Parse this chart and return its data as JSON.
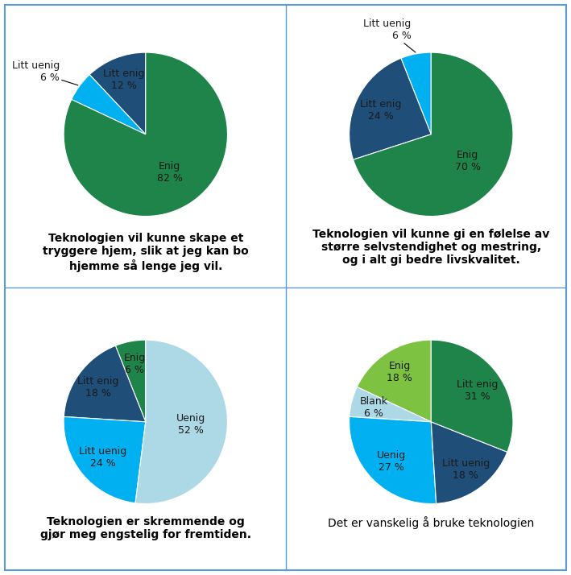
{
  "charts": [
    {
      "title": "Teknologien vil kunne skape et\ntryggere hjem, slik at jeg kan bo\nhjemme så lenge jeg vil.",
      "title_bold": true,
      "labels": [
        "Litt enig",
        "Litt uenig",
        "Enig"
      ],
      "values": [
        12,
        6,
        82
      ],
      "colors": [
        "#1F4E79",
        "#00B0F0",
        "#1E8449"
      ],
      "startangle": 90,
      "label_outside": [
        false,
        true,
        false
      ]
    },
    {
      "title": "Teknologien vil kunne gi en følelse av\nstørre selvstendighet og mestring,\nog i alt gi bedre livskvalitet.",
      "title_bold": true,
      "labels": [
        "Litt uenig",
        "Litt enig",
        "Enig"
      ],
      "values": [
        6,
        24,
        70
      ],
      "colors": [
        "#00B0F0",
        "#1F4E79",
        "#1E8449"
      ],
      "startangle": 90,
      "label_outside": [
        true,
        false,
        false
      ]
    },
    {
      "title": "Teknologien er skremmende og\ngjør meg engstelig for fremtiden.",
      "title_bold": true,
      "labels": [
        "Enig",
        "Litt enig",
        "Litt uenig",
        "Uenig"
      ],
      "values": [
        6,
        18,
        24,
        52
      ],
      "colors": [
        "#1E8449",
        "#1F4E79",
        "#00B0F0",
        "#ADD8E6"
      ],
      "startangle": 90,
      "label_outside": [
        false,
        false,
        false,
        false
      ]
    },
    {
      "title": "Det er vanskelig å bruke teknologien",
      "title_bold": false,
      "labels": [
        "Enig",
        "Blank",
        "Uenig",
        "Litt uenig",
        "Litt enig"
      ],
      "values": [
        18,
        6,
        27,
        18,
        31
      ],
      "colors": [
        "#7DC241",
        "#ADD8E6",
        "#00B0F0",
        "#1F4E79",
        "#1E8449"
      ],
      "startangle": 90,
      "label_outside": [
        false,
        false,
        false,
        false,
        false
      ]
    }
  ],
  "background_color": "#FFFFFF",
  "border_color": "#5B9BD5",
  "title_fontsize": 10,
  "label_fontsize": 9,
  "label_color": "#1a1a1a"
}
